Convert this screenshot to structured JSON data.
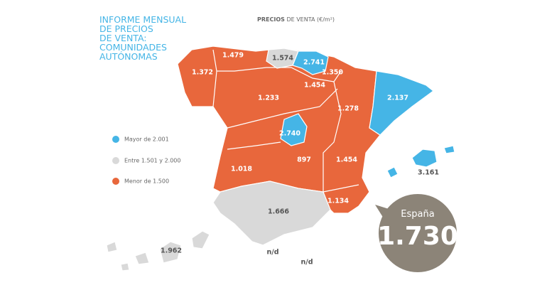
{
  "header": {
    "title_lines": [
      "INFORME MENSUAL",
      "DE PRECIOS",
      "DE VENTA:",
      "COMUNIDADES",
      "AUTÓNOMAS"
    ],
    "subtitle_bold": "PRECIOS",
    "subtitle": " DE VENTA (€/m²)"
  },
  "legend": [
    "Mayor de 2.001",
    "Entre 1.501 y 2.000",
    "Menor de 1.500"
  ],
  "regions": [
    "1.372",
    "1.479",
    "1.574",
    "2.741",
    "1.350",
    "1.454",
    "1.233",
    "1.278",
    "2.137",
    "2.740",
    "1.018",
    "897",
    "1.454",
    "1.134",
    "1.666",
    "3.161",
    "1.962",
    "n/d",
    "n/d"
  ],
  "spain": {
    "label": "España",
    "value": "1.730"
  }
}
